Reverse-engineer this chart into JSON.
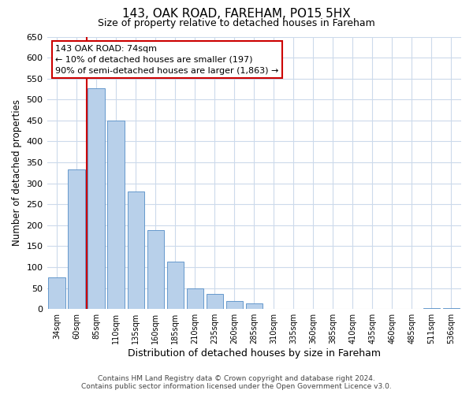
{
  "title": "143, OAK ROAD, FAREHAM, PO15 5HX",
  "subtitle": "Size of property relative to detached houses in Fareham",
  "xlabel": "Distribution of detached houses by size in Fareham",
  "ylabel": "Number of detached properties",
  "bar_labels": [
    "34sqm",
    "60sqm",
    "85sqm",
    "110sqm",
    "135sqm",
    "160sqm",
    "185sqm",
    "210sqm",
    "235sqm",
    "260sqm",
    "285sqm",
    "310sqm",
    "335sqm",
    "360sqm",
    "385sqm",
    "410sqm",
    "435sqm",
    "460sqm",
    "485sqm",
    "511sqm",
    "536sqm"
  ],
  "bar_values": [
    75,
    333,
    527,
    450,
    280,
    188,
    113,
    50,
    36,
    19,
    13,
    0,
    0,
    0,
    0,
    0,
    0,
    0,
    0,
    2,
    2
  ],
  "bar_color": "#b8d0ea",
  "bar_edge_color": "#6699cc",
  "ylim": [
    0,
    650
  ],
  "yticks": [
    0,
    50,
    100,
    150,
    200,
    250,
    300,
    350,
    400,
    450,
    500,
    550,
    600,
    650
  ],
  "vline_x": 1.5,
  "vline_color": "#cc0000",
  "annotation_title": "143 OAK ROAD: 74sqm",
  "annotation_line1": "← 10% of detached houses are smaller (197)",
  "annotation_line2": "90% of semi-detached houses are larger (1,863) →",
  "annotation_box_color": "#ffffff",
  "annotation_box_edge": "#cc0000",
  "footer_line1": "Contains HM Land Registry data © Crown copyright and database right 2024.",
  "footer_line2": "Contains public sector information licensed under the Open Government Licence v3.0.",
  "bg_color": "#ffffff",
  "grid_color": "#ccdaeb"
}
